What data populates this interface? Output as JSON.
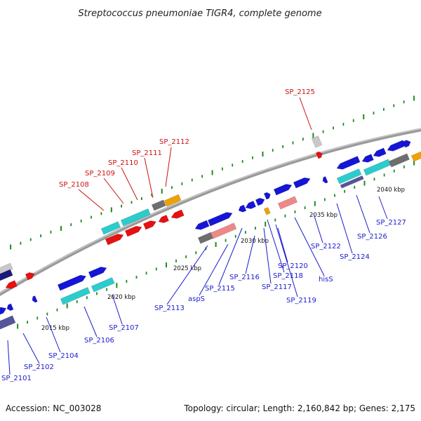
{
  "title": "Streptococcus pneumoniae TIGR4, complete genome",
  "footer": {
    "accession": "Accession: NC_003028",
    "topology": "Topology: circular; Length: 2,160,842 bp; Genes: 2,175"
  },
  "colors": {
    "label_blue": "#1a1acc",
    "label_red": "#cc1111",
    "backbone": "#8c8c8c",
    "tick_green": "#1f8a1f",
    "blue": "#1515d8",
    "cyan": "#2ccccc",
    "red": "#e81010",
    "pink": "#ee8888",
    "gray": "#6e6e6e",
    "orange": "#f0a000",
    "navy": "#1a1a7a",
    "slate": "#55559a",
    "lightgray": "#c8c8c8"
  },
  "scale_labels": [
    "2015 kbp",
    "2020 kbp",
    "2025 kbp",
    "2030 kbp",
    "2035 kbp",
    "2040 kbp"
  ],
  "gene_labels": [
    "SP_2101",
    "SP_2102",
    "SP_2104",
    "SP_2106",
    "SP_2107",
    "SP_2113",
    "aspS",
    "SP_2115",
    "SP_2116",
    "SP_2117",
    "SP_2118",
    "SP_2119",
    "SP_2120",
    "hisS",
    "SP_2122",
    "SP_2124",
    "SP_2126",
    "SP_2127",
    "SP_2108",
    "SP_2109",
    "SP_2110",
    "SP_2111",
    "SP_2112",
    "SP_2125"
  ]
}
